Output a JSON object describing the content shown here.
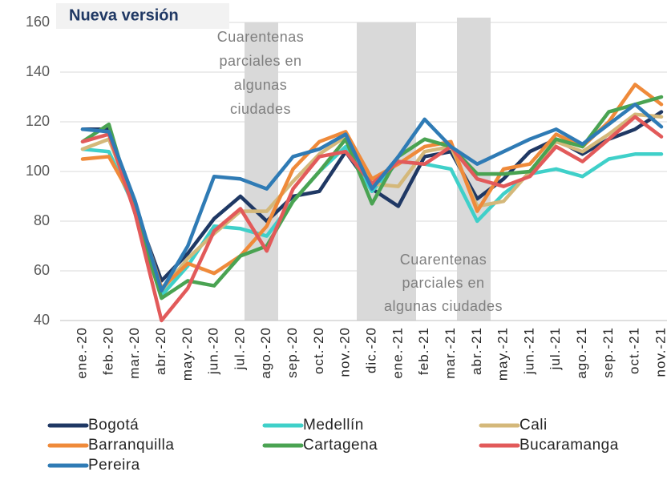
{
  "chart_data": {
    "type": "line",
    "title": "Nueva versión",
    "annotations": [
      [
        "Cuarentenas",
        "parciales en",
        "algunas",
        "ciudades"
      ],
      [
        "Cuarentenas",
        "parciales en",
        "algunas ciudades"
      ]
    ],
    "categories": [
      "ene.-20",
      "feb.-20",
      "mar.-20",
      "abr.-20",
      "may.-20",
      "jun.-20",
      "jul.-20",
      "ago.-20",
      "sep.-20",
      "oct.-20",
      "nov.-20",
      "dic.-20",
      "ene.-21",
      "feb.-21",
      "mar.-21",
      "abr.-21",
      "may.-21",
      "jun.-21",
      "jul.-21",
      "ago.-21",
      "sep.-21",
      "oct.-21",
      "nov.-21"
    ],
    "ylim": [
      40,
      160
    ],
    "yticks": [
      40,
      60,
      80,
      100,
      120,
      140,
      160
    ],
    "grid": true,
    "series": [
      {
        "name": "Bogotá",
        "color": "#1f3864",
        "values": [
          117,
          117,
          85,
          56,
          67,
          81,
          90,
          80,
          90,
          92,
          108,
          93,
          86,
          106,
          108,
          89,
          97,
          108,
          113,
          107,
          113,
          117,
          124
        ]
      },
      {
        "name": "Medellín",
        "color": "#3fd0c9",
        "values": [
          109,
          108,
          85,
          50,
          62,
          78,
          77,
          74,
          88,
          100,
          110,
          92,
          104,
          103,
          101,
          80,
          91,
          99,
          101,
          98,
          105,
          107,
          107
        ]
      },
      {
        "name": "Cali",
        "color": "#d4b87a",
        "values": [
          109,
          113,
          86,
          52,
          65,
          75,
          84,
          84,
          96,
          107,
          114,
          95,
          94,
          108,
          110,
          86,
          88,
          100,
          112,
          108,
          115,
          123,
          122
        ]
      },
      {
        "name": "Barranquilla",
        "color": "#ef8a3a",
        "values": [
          105,
          106,
          87,
          53,
          63,
          59,
          66,
          78,
          101,
          112,
          116,
          97,
          103,
          110,
          112,
          84,
          101,
          103,
          115,
          110,
          120,
          135,
          127
        ]
      },
      {
        "name": "Cartagena",
        "color": "#4aa352",
        "values": [
          112,
          119,
          83,
          49,
          56,
          54,
          66,
          70,
          88,
          100,
          113,
          87,
          106,
          113,
          110,
          99,
          99,
          100,
          113,
          110,
          124,
          127,
          130
        ]
      },
      {
        "name": "Bucaramanga",
        "color": "#e25a5a",
        "values": [
          112,
          115,
          83,
          40,
          53,
          76,
          85,
          68,
          93,
          106,
          108,
          95,
          104,
          103,
          110,
          97,
          94,
          98,
          110,
          104,
          113,
          122,
          114
        ]
      },
      {
        "name": "Pereira",
        "color": "#2f7bb5",
        "values": [
          117,
          116,
          88,
          52,
          70,
          98,
          97,
          93,
          106,
          109,
          115,
          93,
          106,
          121,
          110,
          103,
          108,
          113,
          117,
          111,
          119,
          127,
          118
        ]
      }
    ]
  }
}
